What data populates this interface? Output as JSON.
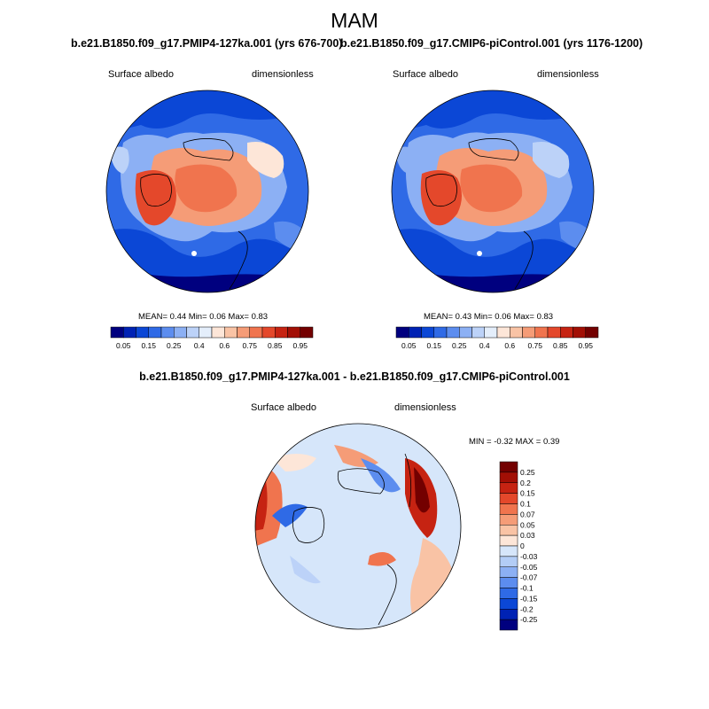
{
  "figure": {
    "season": "MAM"
  },
  "panel_left": {
    "title": "b.e21.B1850.f09_g17.PMIP4-127ka.001 (yrs 676-700)",
    "variable": "Surface albedo",
    "units": "dimensionless",
    "stats": {
      "mean_label": "MEAN=",
      "mean": "0.44",
      "min_label": "Min=",
      "min": "0.06",
      "max_label": "Max=",
      "max": "0.83"
    }
  },
  "panel_right": {
    "title": "b.e21.B1850.f09_g17.CMIP6-piControl.001 (yrs 1176-1200)",
    "variable": "Surface albedo",
    "units": "dimensionless",
    "stats": {
      "mean_label": "MEAN=",
      "mean": "0.43",
      "min_label": "Min=",
      "min": "0.06",
      "max_label": "Max=",
      "max": "0.83"
    }
  },
  "panel_diff": {
    "title": "b.e21.B1850.f09_g17.PMIP4-127ka.001 - b.e21.B1850.f09_g17.CMIP6-piControl.001",
    "variable": "Surface albedo",
    "units": "dimensionless",
    "stats": {
      "min_label": "MIN =",
      "min": "-0.32",
      "max_label": "MAX =",
      "max": "0.39"
    }
  },
  "colorbar_abs": {
    "colors": [
      "#00007f",
      "#0022b4",
      "#0b47d6",
      "#2f6ae6",
      "#5c8def",
      "#8cb0f4",
      "#bcd2f8",
      "#e4eefb",
      "#fde6d8",
      "#f9c3a5",
      "#f59c77",
      "#f0744e",
      "#e4482b",
      "#c62312",
      "#a20f05",
      "#730000"
    ],
    "tick_labels": [
      "0.05",
      "0.15",
      "0.25",
      "0.4",
      "0.6",
      "0.75",
      "0.85",
      "0.95"
    ]
  },
  "colorbar_diff": {
    "colors": [
      "#00007f",
      "#0022b4",
      "#0b47d6",
      "#2f6ae6",
      "#5c8def",
      "#8cb0f4",
      "#b3cdf6",
      "#d6e6fa",
      "#fde6d8",
      "#f9c3a5",
      "#f59c77",
      "#f0744e",
      "#e4482b",
      "#c62312",
      "#a20f05",
      "#730000"
    ],
    "tick_labels": [
      "0.25",
      "0.2",
      "0.15",
      "0.1",
      "0.07",
      "0.05",
      "0.03",
      "0",
      "-0.03",
      "-0.05",
      "-0.07",
      "-0.1",
      "-0.15",
      "-0.2",
      "-0.25"
    ]
  }
}
